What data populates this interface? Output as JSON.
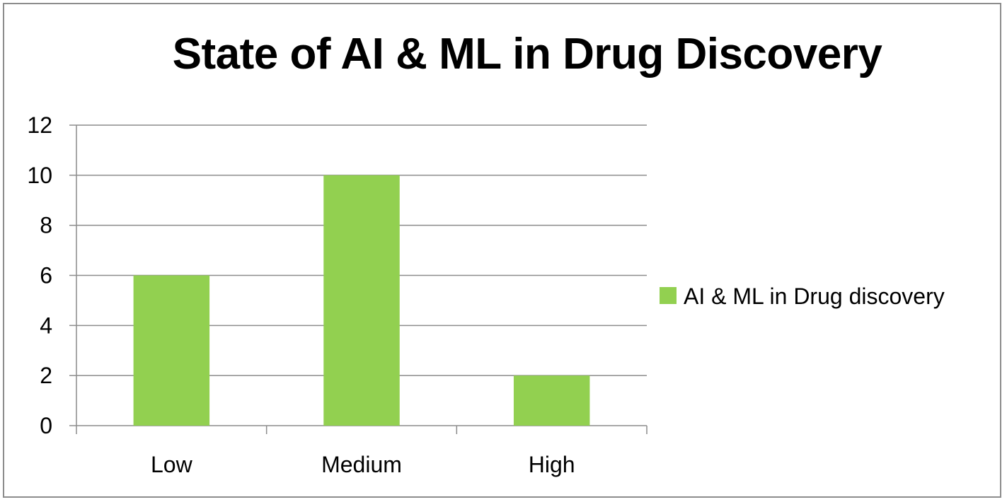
{
  "chart_data": {
    "type": "bar",
    "title": "State of AI & ML in Drug Discovery",
    "categories": [
      "Low",
      "Medium",
      "High"
    ],
    "series": [
      {
        "name": "AI & ML in Drug discovery",
        "values": [
          6,
          10,
          2
        ],
        "color": "#92d050"
      }
    ],
    "yticks": [
      "0",
      "2",
      "4",
      "6",
      "8",
      "10",
      "12"
    ],
    "ylim": [
      0,
      12
    ],
    "grid": true,
    "legend": "right"
  }
}
